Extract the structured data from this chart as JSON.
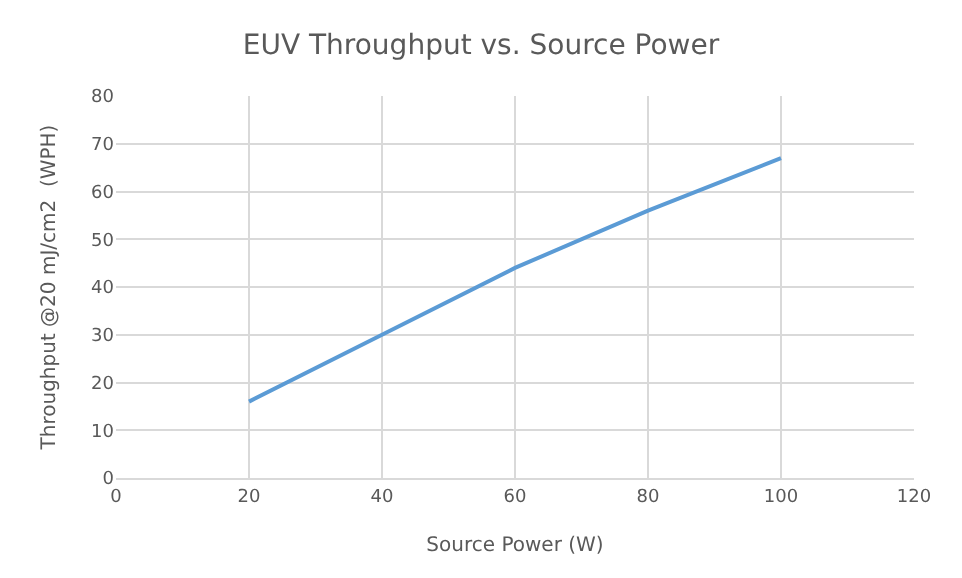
{
  "chart_data": {
    "type": "line",
    "title": "EUV Throughput vs. Source Power",
    "xlabel": "Source Power (W)",
    "ylabel": "Throughput @20 mJ/cm2  (WPH)",
    "x": [
      20,
      40,
      60,
      80,
      100
    ],
    "series": [
      {
        "color": "#5b9bd5",
        "values": [
          16,
          30,
          44,
          56,
          67
        ]
      }
    ],
    "xlim": [
      0,
      120
    ],
    "xticks": [
      0,
      20,
      40,
      60,
      80,
      100,
      120
    ],
    "ylim": [
      0,
      80
    ],
    "yticks": [
      0,
      10,
      20,
      30,
      40,
      50,
      60,
      70,
      80
    ],
    "grid": true,
    "marker": "none",
    "line_style": "solid"
  }
}
